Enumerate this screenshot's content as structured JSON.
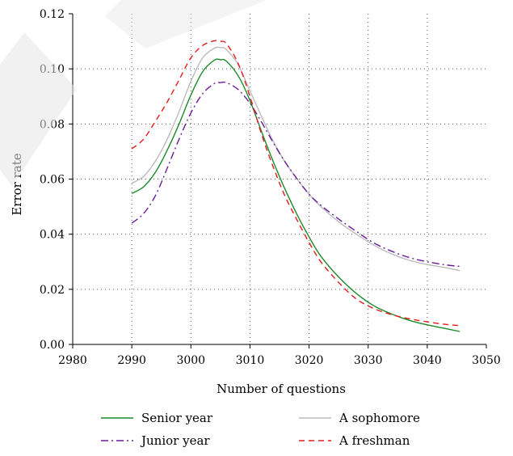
{
  "chart_data": {
    "type": "line",
    "title": "",
    "xlabel": "Number of questions",
    "ylabel": "Error rate",
    "xlim": [
      2980,
      3050
    ],
    "ylim": [
      0,
      0.12
    ],
    "xticks": [
      2980,
      2990,
      3000,
      3010,
      3020,
      3030,
      3040,
      3050
    ],
    "yticks": [
      0.0,
      0.02,
      0.04,
      0.06,
      0.08,
      0.1,
      0.12
    ],
    "xtick_labels": [
      "2980",
      "2990",
      "3000",
      "3010",
      "3020",
      "3030",
      "3040",
      "3050"
    ],
    "ytick_labels": [
      "0.00",
      "0.02",
      "0.04",
      "0.06",
      "0.08",
      "0.10",
      "0.12"
    ],
    "grid": "dotted",
    "legend_position": "bottom",
    "series": [
      {
        "name": "Senior year",
        "color": "#1a8a2a",
        "dash": "solid",
        "x": [
          2990,
          2992,
          2994,
          2996,
          2998,
          3000,
          3002,
          3004,
          3005,
          3006,
          3008,
          3010,
          3012,
          3014,
          3016,
          3018,
          3020,
          3022,
          3025,
          3028,
          3031,
          3034,
          3037,
          3040,
          3043,
          3045.5
        ],
        "y": [
          0.0548,
          0.0572,
          0.0625,
          0.0705,
          0.08,
          0.0905,
          0.099,
          0.1032,
          0.1033,
          0.1028,
          0.0975,
          0.0885,
          0.077,
          0.066,
          0.056,
          0.047,
          0.039,
          0.032,
          0.0245,
          0.0185,
          0.014,
          0.011,
          0.0087,
          0.0071,
          0.0058,
          0.0047
        ]
      },
      {
        "name": "A sophomore",
        "color": "#bbbbbb",
        "dash": "solid",
        "x": [
          2990,
          2992,
          2994,
          2996,
          2998,
          3000,
          3002,
          3004,
          3005,
          3006,
          3008,
          3010,
          3012,
          3014,
          3016,
          3018,
          3020,
          3022,
          3025,
          3028,
          3031,
          3034,
          3037,
          3040,
          3043,
          3045.5
        ],
        "y": [
          0.0585,
          0.061,
          0.0665,
          0.0745,
          0.0845,
          0.0955,
          0.104,
          0.1075,
          0.1077,
          0.107,
          0.1015,
          0.092,
          0.0825,
          0.0735,
          0.066,
          0.06,
          0.0545,
          0.05,
          0.0445,
          0.04,
          0.036,
          0.0328,
          0.0305,
          0.029,
          0.0279,
          0.0268
        ]
      },
      {
        "name": "Junior year",
        "color": "#6a1b9a",
        "dash": "dashdot",
        "x": [
          2990,
          2992,
          2994,
          2996,
          2998,
          3000,
          3002,
          3004,
          3005,
          3006,
          3008,
          3010,
          3012,
          3014,
          3016,
          3018,
          3020,
          3022,
          3025,
          3028,
          3031,
          3034,
          3037,
          3040,
          3043,
          3045.5
        ],
        "y": [
          0.044,
          0.0475,
          0.054,
          0.064,
          0.0745,
          0.084,
          0.091,
          0.0947,
          0.095,
          0.095,
          0.0925,
          0.0875,
          0.0805,
          0.073,
          0.066,
          0.06,
          0.0545,
          0.0505,
          0.0455,
          0.041,
          0.0368,
          0.0338,
          0.0315,
          0.03,
          0.0289,
          0.0283
        ]
      },
      {
        "name": "A freshman",
        "color": "#e41a1c",
        "dash": "dashed",
        "x": [
          2990,
          2992,
          2994,
          2996,
          2998,
          3000,
          3002,
          3004,
          3005,
          3006,
          3008,
          3010,
          3012,
          3014,
          3016,
          3018,
          3020,
          3022,
          3025,
          3028,
          3031,
          3034,
          3037,
          3040,
          3043,
          3045.5
        ],
        "y": [
          0.071,
          0.0745,
          0.081,
          0.088,
          0.096,
          0.104,
          0.1085,
          0.1102,
          0.11,
          0.1092,
          0.102,
          0.09,
          0.076,
          0.064,
          0.0535,
          0.045,
          0.037,
          0.03,
          0.0225,
          0.0165,
          0.013,
          0.0108,
          0.0093,
          0.0082,
          0.0073,
          0.0068
        ]
      }
    ]
  }
}
